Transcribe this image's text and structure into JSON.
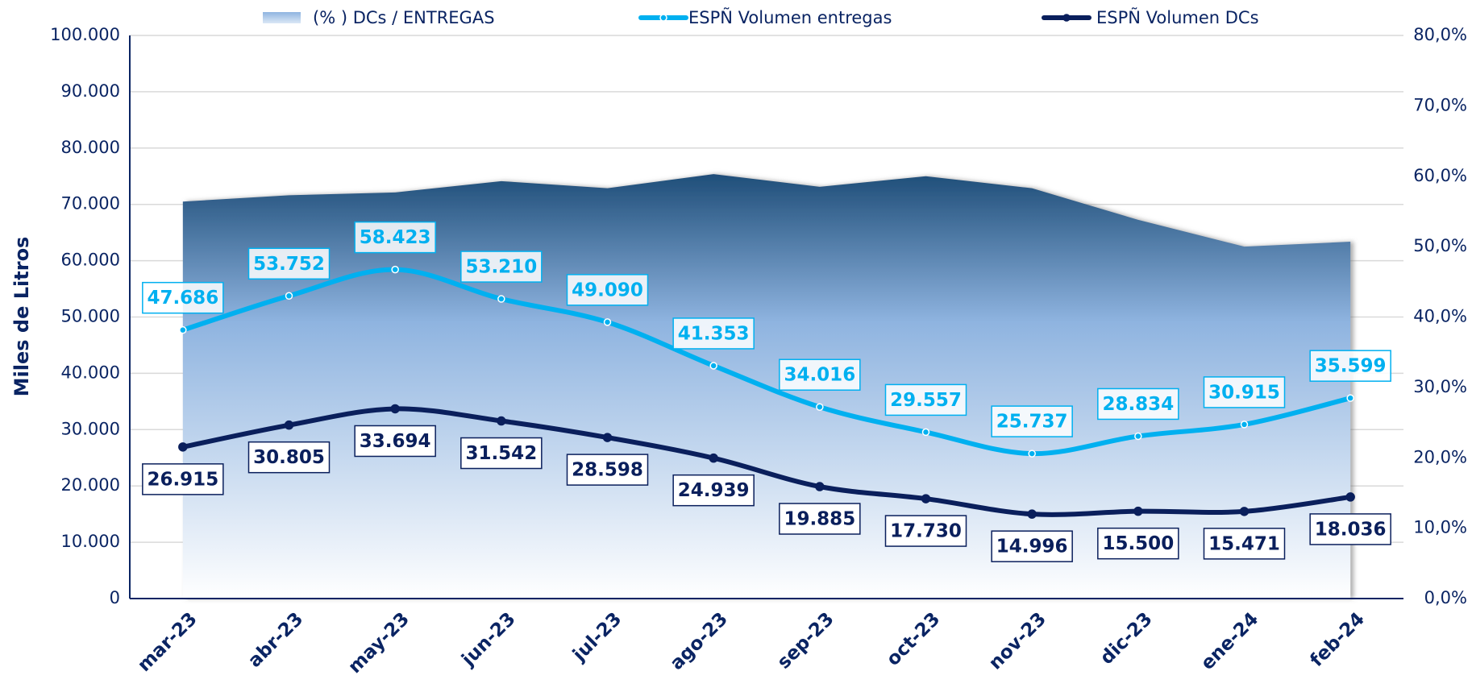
{
  "chart_data": {
    "type": "line",
    "y_label": "Miles de Litros",
    "categories": [
      "mar-23",
      "abr-23",
      "may-23",
      "jun-23",
      "jul-23",
      "ago-23",
      "sep-23",
      "oct-23",
      "nov-23",
      "dic-23",
      "ene-24",
      "feb-24"
    ],
    "series": [
      {
        "name": "(% ) DCs / ENTREGAS",
        "type": "area",
        "axis": "y2",
        "color": "#1f4e79",
        "values": [
          56.4,
          57.3,
          57.7,
          59.3,
          58.3,
          60.3,
          58.5,
          60.0,
          58.3,
          53.8,
          50.0,
          50.7
        ]
      },
      {
        "name": "ESPÑ Volumen entregas",
        "type": "line",
        "color": "#00b0f0",
        "values": [
          47686,
          53752,
          58423,
          53210,
          49090,
          41353,
          34016,
          29557,
          25737,
          28834,
          30915,
          35599
        ],
        "value_labels": [
          "47.686",
          "53.752",
          "58.423",
          "53.210",
          "49.090",
          "41.353",
          "34.016",
          "29.557",
          "25.737",
          "28.834",
          "30.915",
          "35.599"
        ]
      },
      {
        "name": "ESPÑ Volumen DCs",
        "type": "line",
        "color": "#0a1f5c",
        "values": [
          26915,
          30805,
          33694,
          31542,
          28598,
          24939,
          19885,
          17730,
          14996,
          15500,
          15471,
          18036
        ],
        "value_labels": [
          "26.915",
          "30.805",
          "33.694",
          "31.542",
          "28.598",
          "24.939",
          "19.885",
          "17.730",
          "14.996",
          "15.500",
          "15.471",
          "18.036"
        ]
      }
    ],
    "ylim": [
      0,
      100000
    ],
    "yticks": [
      0,
      {
        "value": 10000,
        "label": "10.000"
      },
      {
        "value": 20000,
        "label": "20.000"
      },
      {
        "value": 30000,
        "label": "30.000"
      },
      {
        "value": 40000,
        "label": "40.000"
      },
      {
        "value": 50000,
        "label": "50.000"
      },
      {
        "value": 60000,
        "label": "60.000"
      },
      {
        "value": 70000,
        "label": "70.000"
      },
      {
        "value": 80000,
        "label": "80.000"
      },
      {
        "value": 90000,
        "label": "90.000"
      },
      {
        "value": 100000,
        "label": "100.000"
      }
    ],
    "y2lim": [
      0,
      80
    ],
    "y2ticks": [
      {
        "value": 0,
        "label": "0,0%"
      },
      {
        "value": 10,
        "label": "10,0%"
      },
      {
        "value": 20,
        "label": "20,0%"
      },
      {
        "value": 30,
        "label": "30,0%"
      },
      {
        "value": 40,
        "label": "40,0%"
      },
      {
        "value": 50,
        "label": "50,0%"
      },
      {
        "value": 60,
        "label": "60,0%"
      },
      {
        "value": 70,
        "label": "70,0%"
      },
      {
        "value": 80,
        "label": "80,0%"
      }
    ],
    "grid": true,
    "legend": "top"
  }
}
